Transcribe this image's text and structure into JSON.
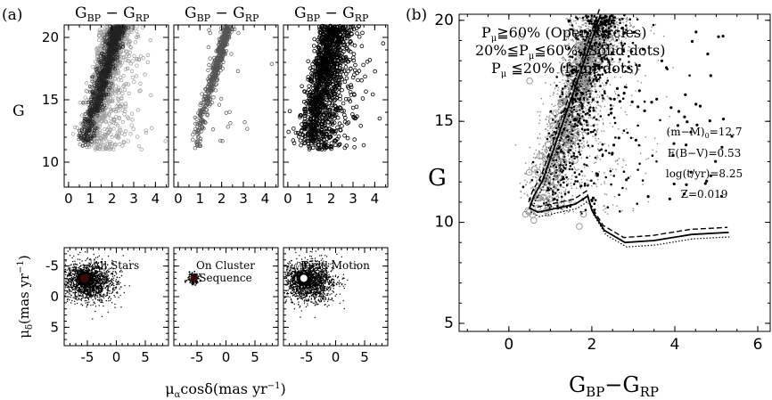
{
  "panel_labels": {
    "a": "(a)",
    "b": "(b)"
  },
  "colors": {
    "ink": "#000000",
    "grey_circle": "#9a9a9a",
    "faint": "#8a8a8a",
    "marker_dark": "#3a0a0a"
  },
  "chart_data": [
    {
      "id": "cmd-all",
      "type": "scatter",
      "title": "",
      "xlabel_top": "G_BP − G_RP",
      "ylabel": "G",
      "xlim": [
        -0.2,
        4.6
      ],
      "ylim": [
        21,
        8
      ],
      "xticks": [
        "0",
        "1",
        "2",
        "3",
        "4"
      ],
      "yticks": [
        "10",
        "15",
        "20"
      ],
      "series": [
        {
          "name": "",
          "marker": "open-grey-circle"
        }
      ]
    },
    {
      "id": "cmd-cluster",
      "type": "scatter",
      "xlabel_top": "G_BP − G_RP",
      "xlim": [
        -0.2,
        4.6
      ],
      "ylim": [
        21,
        8
      ],
      "xticks": [
        "0",
        "1",
        "2",
        "3",
        "4"
      ],
      "series": [
        {
          "name": "",
          "marker": "open-grey-circle"
        }
      ]
    },
    {
      "id": "cmd-field",
      "type": "scatter",
      "xlabel_top": "G_BP − G_RP",
      "xlim": [
        -0.2,
        4.6
      ],
      "ylim": [
        21,
        8
      ],
      "xticks": [
        "0",
        "1",
        "2",
        "3",
        "4"
      ],
      "series": [
        {
          "name": "",
          "marker": "open-black-circle"
        }
      ]
    },
    {
      "id": "vpd-all",
      "type": "scatter",
      "label": "All Stars",
      "ylabel": "μδ(mas yr⁻¹)",
      "xlim": [
        -9,
        9
      ],
      "ylim": [
        -8,
        8
      ],
      "xticks": [
        "-5",
        "0",
        "5"
      ],
      "yticks": [
        "5",
        "0",
        "-5"
      ],
      "centroid": [
        -5.5,
        -3.0
      ]
    },
    {
      "id": "vpd-cluster",
      "type": "scatter",
      "label": "On Cluster Sequence",
      "xlabel": "μαcosδ(mas yr⁻¹)",
      "xlim": [
        -9,
        9
      ],
      "ylim": [
        -8,
        8
      ],
      "xticks": [
        "-5",
        "0",
        "5"
      ],
      "centroid": [
        -5.5,
        -3.0
      ]
    },
    {
      "id": "vpd-field",
      "type": "scatter",
      "label": "Field Motion",
      "xlim": [
        -9,
        9
      ],
      "ylim": [
        -8,
        8
      ],
      "xticks": [
        "-5",
        "0",
        "5"
      ],
      "centroid": [
        -5.5,
        -3.0
      ]
    },
    {
      "id": "cmd-membership",
      "type": "scatter",
      "xlabel": "G_BP − G_RP",
      "ylabel": "G",
      "xlim": [
        -1.2,
        6.3
      ],
      "ylim": [
        20.3,
        4.6
      ],
      "xticks": [
        "0",
        "2",
        "4",
        "6"
      ],
      "yticks": [
        "5",
        "10",
        "15",
        "20"
      ],
      "legend": [
        "Pμ≧60% (Open circles)",
        "20%≦Pμ≦60% (Solid dots)",
        "Pμ ≦20% (faint dots)"
      ],
      "annotations": [
        "(m−M)₀=12.7",
        "E(B−V)=0.53",
        "log(t/yr)=8.25",
        "Z=0.019"
      ],
      "isochrones": [
        "solid",
        "dotted",
        "dashed"
      ]
    }
  ]
}
